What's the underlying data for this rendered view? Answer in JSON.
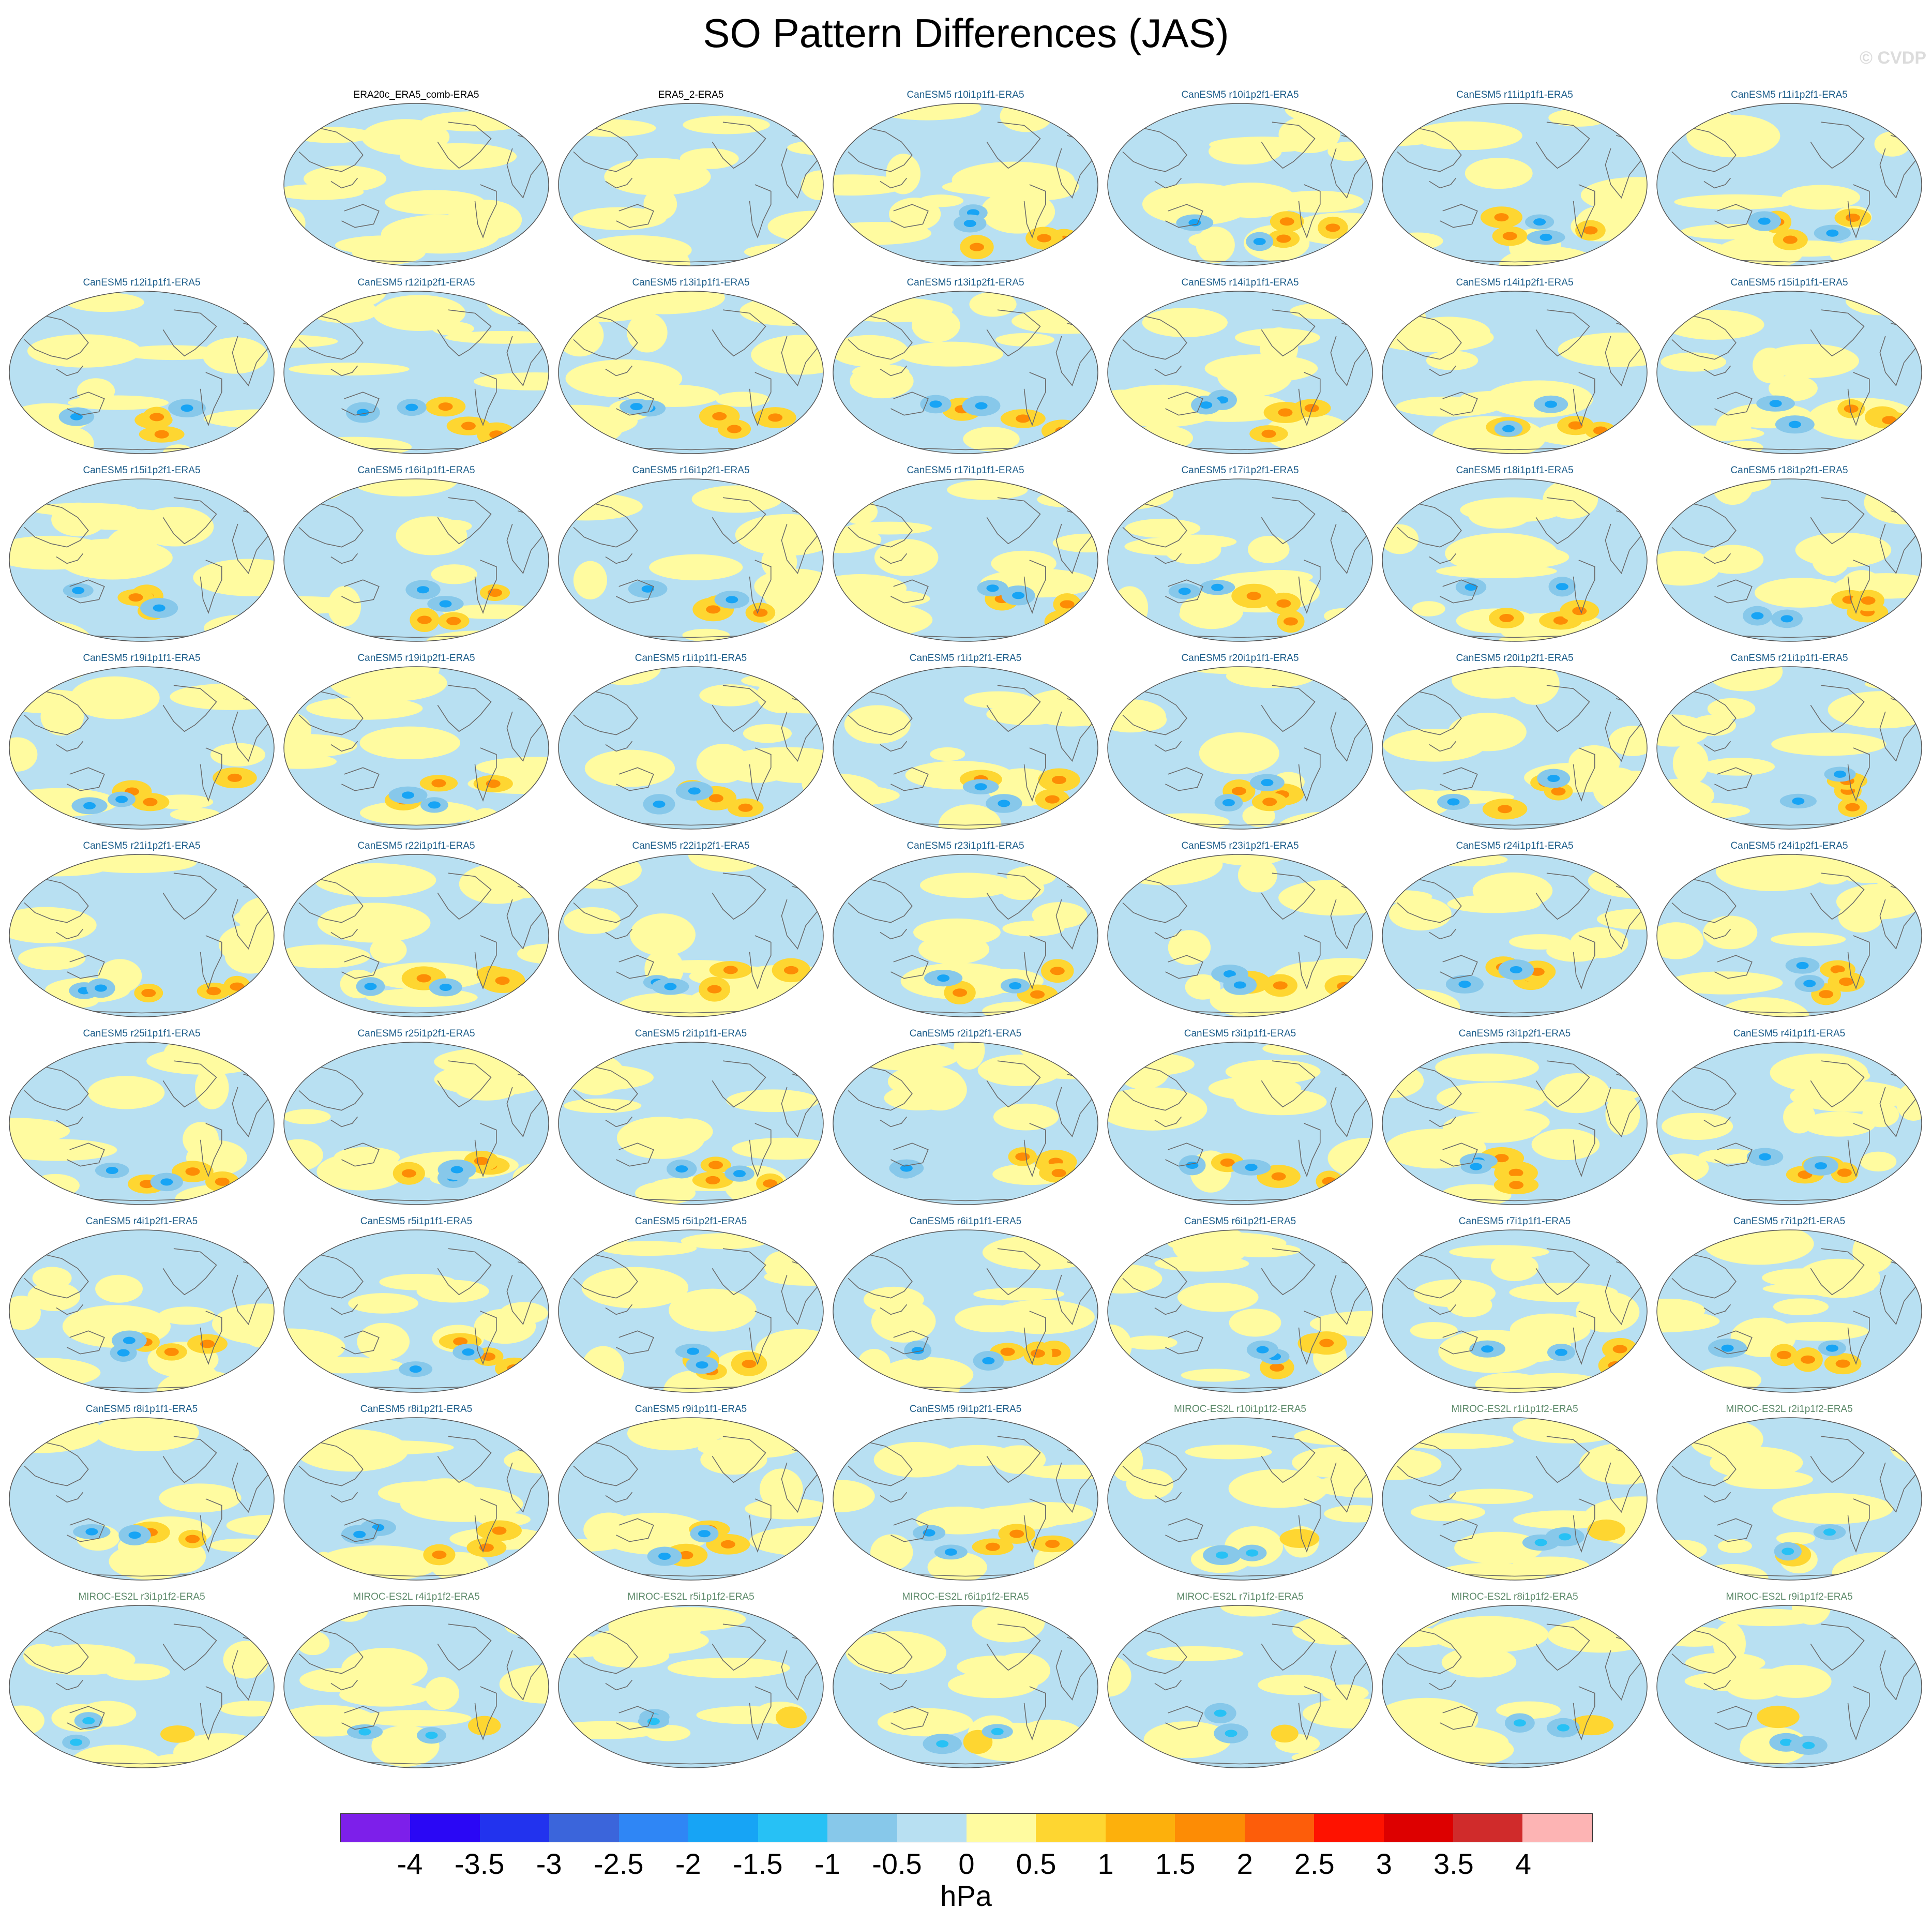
{
  "title": "SO Pattern Differences (JAS)",
  "watermark": "© CVDP",
  "chart_data": {
    "type": "heatmap",
    "title": "SO Pattern Differences (JAS)",
    "projection": "global ellipse (Robinson-like), Pacific-centered, with coastlines",
    "grid_rows": 9,
    "grid_cols": 7,
    "panels": [
      {
        "label": "",
        "group": "blank"
      },
      {
        "label": "ERA20c_ERA5_comb-ERA5",
        "group": "obs"
      },
      {
        "label": "ERA5_2-ERA5",
        "group": "obs"
      },
      {
        "label": "CanESM5 r10i1p1f1-ERA5",
        "group": "CanESM5"
      },
      {
        "label": "CanESM5 r10i1p2f1-ERA5",
        "group": "CanESM5"
      },
      {
        "label": "CanESM5 r11i1p1f1-ERA5",
        "group": "CanESM5"
      },
      {
        "label": "CanESM5 r11i1p2f1-ERA5",
        "group": "CanESM5"
      },
      {
        "label": "CanESM5 r12i1p1f1-ERA5",
        "group": "CanESM5"
      },
      {
        "label": "CanESM5 r12i1p2f1-ERA5",
        "group": "CanESM5"
      },
      {
        "label": "CanESM5 r13i1p1f1-ERA5",
        "group": "CanESM5"
      },
      {
        "label": "CanESM5 r13i1p2f1-ERA5",
        "group": "CanESM5"
      },
      {
        "label": "CanESM5 r14i1p1f1-ERA5",
        "group": "CanESM5"
      },
      {
        "label": "CanESM5 r14i1p2f1-ERA5",
        "group": "CanESM5"
      },
      {
        "label": "CanESM5 r15i1p1f1-ERA5",
        "group": "CanESM5"
      },
      {
        "label": "CanESM5 r15i1p2f1-ERA5",
        "group": "CanESM5"
      },
      {
        "label": "CanESM5 r16i1p1f1-ERA5",
        "group": "CanESM5"
      },
      {
        "label": "CanESM5 r16i1p2f1-ERA5",
        "group": "CanESM5"
      },
      {
        "label": "CanESM5 r17i1p1f1-ERA5",
        "group": "CanESM5"
      },
      {
        "label": "CanESM5 r17i1p2f1-ERA5",
        "group": "CanESM5"
      },
      {
        "label": "CanESM5 r18i1p1f1-ERA5",
        "group": "CanESM5"
      },
      {
        "label": "CanESM5 r18i1p2f1-ERA5",
        "group": "CanESM5"
      },
      {
        "label": "CanESM5 r19i1p1f1-ERA5",
        "group": "CanESM5"
      },
      {
        "label": "CanESM5 r19i1p2f1-ERA5",
        "group": "CanESM5"
      },
      {
        "label": "CanESM5 r1i1p1f1-ERA5",
        "group": "CanESM5"
      },
      {
        "label": "CanESM5 r1i1p2f1-ERA5",
        "group": "CanESM5"
      },
      {
        "label": "CanESM5 r20i1p1f1-ERA5",
        "group": "CanESM5"
      },
      {
        "label": "CanESM5 r20i1p2f1-ERA5",
        "group": "CanESM5"
      },
      {
        "label": "CanESM5 r21i1p1f1-ERA5",
        "group": "CanESM5"
      },
      {
        "label": "CanESM5 r21i1p2f1-ERA5",
        "group": "CanESM5"
      },
      {
        "label": "CanESM5 r22i1p1f1-ERA5",
        "group": "CanESM5"
      },
      {
        "label": "CanESM5 r22i1p2f1-ERA5",
        "group": "CanESM5"
      },
      {
        "label": "CanESM5 r23i1p1f1-ERA5",
        "group": "CanESM5"
      },
      {
        "label": "CanESM5 r23i1p2f1-ERA5",
        "group": "CanESM5"
      },
      {
        "label": "CanESM5 r24i1p1f1-ERA5",
        "group": "CanESM5"
      },
      {
        "label": "CanESM5 r24i1p2f1-ERA5",
        "group": "CanESM5"
      },
      {
        "label": "CanESM5 r25i1p1f1-ERA5",
        "group": "CanESM5"
      },
      {
        "label": "CanESM5 r25i1p2f1-ERA5",
        "group": "CanESM5"
      },
      {
        "label": "CanESM5 r2i1p1f1-ERA5",
        "group": "CanESM5"
      },
      {
        "label": "CanESM5 r2i1p2f1-ERA5",
        "group": "CanESM5"
      },
      {
        "label": "CanESM5 r3i1p1f1-ERA5",
        "group": "CanESM5"
      },
      {
        "label": "CanESM5 r3i1p2f1-ERA5",
        "group": "CanESM5"
      },
      {
        "label": "CanESM5 r4i1p1f1-ERA5",
        "group": "CanESM5"
      },
      {
        "label": "CanESM5 r4i1p2f1-ERA5",
        "group": "CanESM5"
      },
      {
        "label": "CanESM5 r5i1p1f1-ERA5",
        "group": "CanESM5"
      },
      {
        "label": "CanESM5 r5i1p2f1-ERA5",
        "group": "CanESM5"
      },
      {
        "label": "CanESM5 r6i1p1f1-ERA5",
        "group": "CanESM5"
      },
      {
        "label": "CanESM5 r6i1p2f1-ERA5",
        "group": "CanESM5"
      },
      {
        "label": "CanESM5 r7i1p1f1-ERA5",
        "group": "CanESM5"
      },
      {
        "label": "CanESM5 r7i1p2f1-ERA5",
        "group": "CanESM5"
      },
      {
        "label": "CanESM5 r8i1p1f1-ERA5",
        "group": "CanESM5"
      },
      {
        "label": "CanESM5 r8i1p2f1-ERA5",
        "group": "CanESM5"
      },
      {
        "label": "CanESM5 r9i1p1f1-ERA5",
        "group": "CanESM5"
      },
      {
        "label": "CanESM5 r9i1p2f1-ERA5",
        "group": "CanESM5"
      },
      {
        "label": "MIROC-ES2L r10i1p1f2-ERA5",
        "group": "MIROC-ES2L"
      },
      {
        "label": "MIROC-ES2L r1i1p1f2-ERA5",
        "group": "MIROC-ES2L"
      },
      {
        "label": "MIROC-ES2L r2i1p1f2-ERA5",
        "group": "MIROC-ES2L"
      },
      {
        "label": "MIROC-ES2L r3i1p1f2-ERA5",
        "group": "MIROC-ES2L"
      },
      {
        "label": "MIROC-ES2L r4i1p1f2-ERA5",
        "group": "MIROC-ES2L"
      },
      {
        "label": "MIROC-ES2L r5i1p1f2-ERA5",
        "group": "MIROC-ES2L"
      },
      {
        "label": "MIROC-ES2L r6i1p1f2-ERA5",
        "group": "MIROC-ES2L"
      },
      {
        "label": "MIROC-ES2L r7i1p1f2-ERA5",
        "group": "MIROC-ES2L"
      },
      {
        "label": "MIROC-ES2L r8i1p1f2-ERA5",
        "group": "MIROC-ES2L"
      },
      {
        "label": "MIROC-ES2L r9i1p1f2-ERA5",
        "group": "MIROC-ES2L"
      }
    ],
    "colorbar": {
      "units": "hPa",
      "ticks": [
        "-4",
        "-3.5",
        "-3",
        "-2.5",
        "-2",
        "-1.5",
        "-1",
        "-0.5",
        "0",
        "0.5",
        "1",
        "1.5",
        "2",
        "2.5",
        "3",
        "3.5",
        "4"
      ],
      "levels": [
        -4,
        -3.5,
        -3,
        -2.5,
        -2,
        -1.5,
        -1,
        -0.5,
        0,
        0.5,
        1,
        1.5,
        2,
        2.5,
        3,
        3.5,
        4
      ],
      "colors": [
        "#7d1fea",
        "#2a07f5",
        "#2233ee",
        "#3b65db",
        "#2f86f5",
        "#17a4f5",
        "#27c1f5",
        "#87c8ea",
        "#b8e0f2",
        "#fffba0",
        "#fed631",
        "#fdb00c",
        "#fd8c05",
        "#fd5d0a",
        "#fe1200",
        "#dd0000",
        "#d02b2b",
        "#fdb4b4"
      ]
    },
    "group_title_colors": {
      "obs": "#000000",
      "CanESM5": "#1c5d8a",
      "MIROC-ES2L": "#5d8a6a"
    },
    "map_colors": {
      "ocean_base": "#b8e0f2",
      "coastline": "#6b6b6b"
    }
  }
}
